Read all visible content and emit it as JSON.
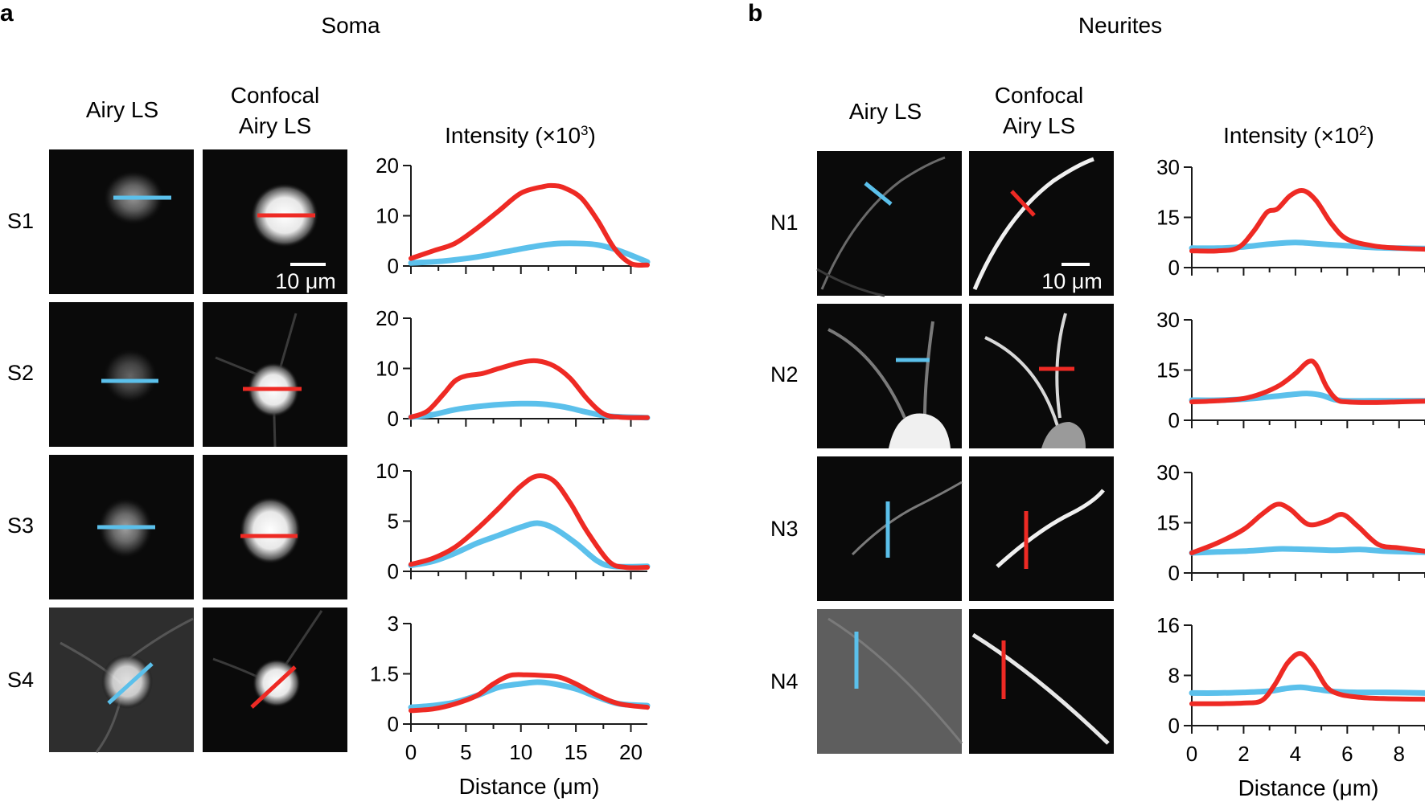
{
  "figure": {
    "colors": {
      "airy": "#5bc0eb",
      "confocal": "#ee2a24",
      "axis": "#1a1a1a",
      "image_bg": "#0a0a0a"
    }
  },
  "panel_a": {
    "letter": "a",
    "title": "Soma",
    "col_airy": "Airy LS",
    "col_confocal_1": "Confocal",
    "col_confocal_2": "Airy LS",
    "intensity_label": "Intensity (×10",
    "intensity_exp": "3",
    "intensity_close": ")",
    "scale_bar": "10 μm",
    "xlabel": "Distance (μm)",
    "rows": [
      "S1",
      "S2",
      "S3",
      "S4"
    ]
  },
  "panel_b": {
    "letter": "b",
    "title": "Neurites",
    "col_airy": "Airy LS",
    "col_confocal_1": "Confocal",
    "col_confocal_2": "Airy LS",
    "intensity_label": "Intensity (×10",
    "intensity_exp": "2",
    "intensity_close": ")",
    "scale_bar": "10 μm",
    "xlabel": "Distance (μm)",
    "rows": [
      "N1",
      "N2",
      "N3",
      "N4"
    ]
  },
  "chart_data": [
    {
      "type": "line",
      "panel": "a",
      "row": "S1",
      "title": "",
      "ylabel": "Intensity (×10³)",
      "xlabel": "",
      "xlim": [
        0,
        21.5
      ],
      "ylim": [
        0,
        20
      ],
      "yticks": [
        "0",
        "10",
        "20"
      ],
      "series": [
        {
          "name": "Airy LS",
          "color": "#5bc0eb",
          "x": [
            0,
            3,
            6,
            9,
            11,
            13,
            15,
            17,
            19,
            21.5
          ],
          "y": [
            0.6,
            1.0,
            1.8,
            3.0,
            3.8,
            4.4,
            4.5,
            4.2,
            3.0,
            0.8
          ]
        },
        {
          "name": "Confocal Airy LS",
          "color": "#ee2a24",
          "x": [
            0,
            2,
            4,
            6,
            8,
            10,
            12,
            13,
            14,
            15.5,
            17,
            18.5,
            20,
            21.5
          ],
          "y": [
            1.5,
            3.0,
            4.5,
            7.5,
            11,
            14.5,
            15.8,
            16,
            15.5,
            13.5,
            9,
            3.5,
            0.5,
            0.2
          ]
        }
      ]
    },
    {
      "type": "line",
      "panel": "a",
      "row": "S2",
      "xlim": [
        0,
        21.5
      ],
      "ylim": [
        0,
        20
      ],
      "yticks": [
        "0",
        "10",
        "20"
      ],
      "series": [
        {
          "name": "Airy LS",
          "color": "#5bc0eb",
          "x": [
            0,
            2,
            4,
            6,
            8,
            10,
            12,
            14,
            16,
            18,
            21.5
          ],
          "y": [
            0.3,
            0.8,
            1.8,
            2.4,
            2.8,
            3.0,
            2.9,
            2.3,
            1.3,
            0.5,
            0.2
          ]
        },
        {
          "name": "Confocal Airy LS",
          "color": "#ee2a24",
          "x": [
            0,
            1.5,
            3,
            4,
            5,
            6.5,
            8,
            10,
            11.5,
            13,
            14.5,
            16,
            17.5,
            19,
            21.5
          ],
          "y": [
            0.3,
            1.5,
            5,
            7.5,
            8.5,
            9,
            10,
            11.2,
            11.5,
            10.5,
            8,
            4,
            1,
            0.3,
            0.2
          ]
        }
      ]
    },
    {
      "type": "line",
      "panel": "a",
      "row": "S3",
      "xlim": [
        0,
        21.5
      ],
      "ylim": [
        0,
        10
      ],
      "yticks": [
        "0",
        "5",
        "10"
      ],
      "series": [
        {
          "name": "Airy LS",
          "color": "#5bc0eb",
          "x": [
            0,
            2,
            4,
            6,
            8,
            10,
            11.5,
            13,
            15,
            17,
            18.5,
            21.5
          ],
          "y": [
            0.6,
            1.0,
            1.8,
            2.8,
            3.6,
            4.4,
            4.8,
            4.3,
            2.8,
            1.0,
            0.5,
            0.5
          ]
        },
        {
          "name": "Confocal Airy LS",
          "color": "#ee2a24",
          "x": [
            0,
            2,
            4,
            6,
            8,
            10,
            11.5,
            13,
            14.5,
            16,
            18,
            19.5,
            21.5
          ],
          "y": [
            0.7,
            1.3,
            2.4,
            4.2,
            6.3,
            8.5,
            9.5,
            9.0,
            6.8,
            4.0,
            1.0,
            0.4,
            0.4
          ]
        }
      ]
    },
    {
      "type": "line",
      "panel": "a",
      "row": "S4",
      "xlim": [
        0,
        21.5
      ],
      "ylim": [
        0,
        3
      ],
      "yticks": [
        "0",
        "1.5",
        "3"
      ],
      "series": [
        {
          "name": "Airy LS",
          "color": "#5bc0eb",
          "x": [
            0,
            2,
            4,
            6,
            8,
            10,
            11.5,
            13,
            15,
            17,
            19,
            21.5
          ],
          "y": [
            0.5,
            0.55,
            0.65,
            0.85,
            1.1,
            1.2,
            1.25,
            1.2,
            1.05,
            0.8,
            0.6,
            0.55
          ]
        },
        {
          "name": "Confocal Airy LS",
          "color": "#ee2a24",
          "x": [
            0,
            2,
            4,
            6,
            7.5,
            9,
            10.5,
            12,
            13.5,
            15,
            17,
            19,
            21.5
          ],
          "y": [
            0.4,
            0.45,
            0.6,
            0.85,
            1.2,
            1.45,
            1.47,
            1.45,
            1.4,
            1.2,
            0.85,
            0.6,
            0.5
          ]
        }
      ]
    },
    {
      "type": "line",
      "panel": "b",
      "row": "N1",
      "xlim": [
        0,
        9
      ],
      "ylim": [
        0,
        30
      ],
      "yticks": [
        "0",
        "15",
        "30"
      ],
      "series": [
        {
          "name": "Airy LS",
          "color": "#5bc0eb",
          "x": [
            0,
            1,
            2,
            3,
            4,
            5,
            6,
            7,
            8,
            9
          ],
          "y": [
            5.8,
            5.8,
            6.2,
            7.0,
            7.5,
            7.0,
            6.5,
            6.0,
            5.8,
            5.7
          ]
        },
        {
          "name": "Confocal Airy LS",
          "color": "#ee2a24",
          "x": [
            0,
            1,
            1.8,
            2.4,
            2.9,
            3.3,
            3.8,
            4.3,
            4.8,
            5.4,
            6.0,
            7.0,
            8.0,
            9.0
          ],
          "y": [
            5,
            5,
            6,
            11,
            16.5,
            17.5,
            21.5,
            23,
            20,
            13,
            8.5,
            6.5,
            5.8,
            5.5
          ]
        }
      ]
    },
    {
      "type": "line",
      "panel": "b",
      "row": "N2",
      "xlim": [
        0,
        9
      ],
      "ylim": [
        0,
        30
      ],
      "yticks": [
        "0",
        "15",
        "30"
      ],
      "series": [
        {
          "name": "Airy LS",
          "color": "#5bc0eb",
          "x": [
            0,
            1,
            2,
            3,
            4,
            4.5,
            5.0,
            5.5,
            6,
            7,
            8,
            9
          ],
          "y": [
            6,
            6,
            6.3,
            7,
            7.8,
            8.0,
            7.5,
            6.2,
            5.8,
            5.8,
            5.8,
            5.8
          ]
        },
        {
          "name": "Confocal Airy LS",
          "color": "#ee2a24",
          "x": [
            0,
            1,
            2,
            2.7,
            3.4,
            4.0,
            4.5,
            4.8,
            5.2,
            5.6,
            6.0,
            7,
            8,
            9
          ],
          "y": [
            5.5,
            5.8,
            6.5,
            8.0,
            10.5,
            14,
            17.5,
            16.5,
            10,
            6.2,
            5.5,
            5.3,
            5.5,
            5.7
          ]
        }
      ]
    },
    {
      "type": "line",
      "panel": "b",
      "row": "N3",
      "xlim": [
        0,
        9
      ],
      "ylim": [
        0,
        30
      ],
      "yticks": [
        "0",
        "15",
        "30"
      ],
      "series": [
        {
          "name": "Airy LS",
          "color": "#5bc0eb",
          "x": [
            0,
            1,
            2,
            3,
            3.5,
            4.5,
            5.5,
            6.5,
            7.5,
            9
          ],
          "y": [
            6,
            6.3,
            6.5,
            7.0,
            7.2,
            7.0,
            6.8,
            7.0,
            6.5,
            6.2
          ]
        },
        {
          "name": "Confocal Airy LS",
          "color": "#ee2a24",
          "x": [
            0,
            1,
            2,
            2.7,
            3.3,
            3.8,
            4.5,
            5.2,
            5.8,
            6.4,
            7.2,
            8.0,
            9.0
          ],
          "y": [
            6,
            9,
            13,
            17.5,
            20.5,
            19,
            14.5,
            15.5,
            17.5,
            14,
            8.5,
            7.5,
            6.5
          ]
        }
      ]
    },
    {
      "type": "line",
      "panel": "b",
      "row": "N4",
      "xlim": [
        0,
        9
      ],
      "ylim": [
        0,
        16
      ],
      "yticks": [
        "0",
        "8",
        "16"
      ],
      "series": [
        {
          "name": "Airy LS",
          "color": "#5bc0eb",
          "x": [
            0,
            1,
            2,
            3,
            3.6,
            4.2,
            4.8,
            5.6,
            6.5,
            7.5,
            9
          ],
          "y": [
            5.2,
            5.2,
            5.3,
            5.5,
            5.9,
            6.1,
            5.8,
            5.4,
            5.3,
            5.3,
            5.2
          ]
        },
        {
          "name": "Confocal Airy LS",
          "color": "#ee2a24",
          "x": [
            0,
            1,
            2,
            2.7,
            3.2,
            3.7,
            4.2,
            4.7,
            5.2,
            5.7,
            6.5,
            7.5,
            9
          ],
          "y": [
            3.5,
            3.5,
            3.6,
            4.0,
            6.5,
            10,
            11.5,
            9.5,
            6.2,
            5,
            4.5,
            4.3,
            4.2
          ]
        }
      ]
    }
  ]
}
